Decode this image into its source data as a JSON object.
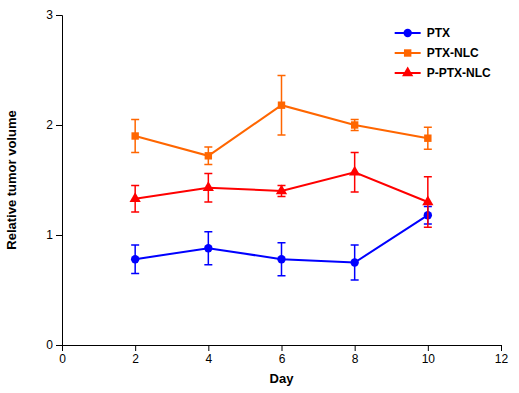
{
  "chart_data": {
    "type": "line",
    "xlabel": "Day",
    "ylabel": "Relative tumor volume",
    "x": [
      2,
      4,
      6,
      8,
      10
    ],
    "xlim": [
      0,
      12
    ],
    "ylim": [
      0,
      3
    ],
    "xticks": [
      0,
      2,
      4,
      6,
      8,
      10,
      12
    ],
    "yticks": [
      0,
      1,
      2,
      3
    ],
    "grid": false,
    "legend": "upper right",
    "series": [
      {
        "name": "PTX",
        "color": "#0000ff",
        "marker": "circle",
        "values": [
          0.78,
          0.88,
          0.78,
          0.75,
          1.18
        ],
        "errors": [
          0.13,
          0.15,
          0.15,
          0.16,
          0.08
        ]
      },
      {
        "name": "PTX-NLC",
        "color": "#ff6600",
        "marker": "square",
        "values": [
          1.9,
          1.72,
          2.18,
          2.0,
          1.88
        ],
        "errors": [
          0.15,
          0.08,
          0.27,
          0.05,
          0.1
        ]
      },
      {
        "name": "P-PTX-NLC",
        "color": "#ff0000",
        "marker": "triangle",
        "values": [
          1.33,
          1.43,
          1.4,
          1.57,
          1.3
        ],
        "errors": [
          0.12,
          0.13,
          0.05,
          0.18,
          0.23
        ]
      }
    ]
  }
}
